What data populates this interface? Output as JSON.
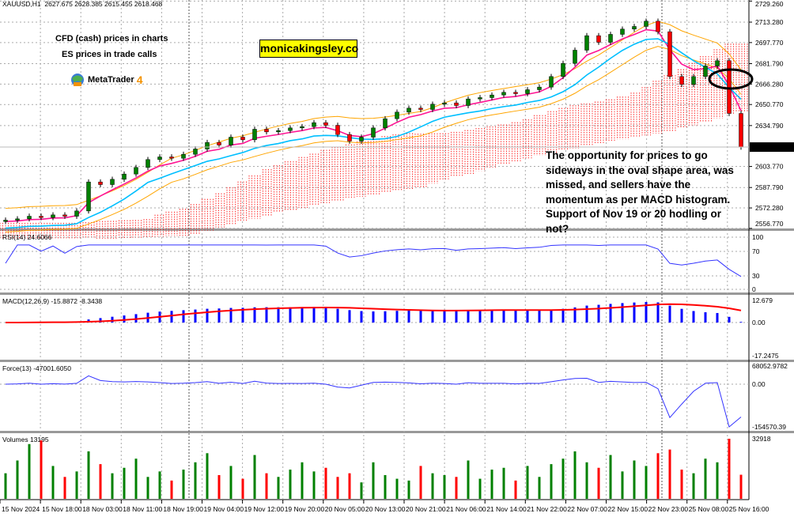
{
  "header": {
    "symbol": "XAUUSD,H1",
    "ohlc": "2627.675 2628.385 2615.455 2618.468"
  },
  "notes": {
    "line1": "CFD (cash) prices in charts",
    "line2": "ES prices in trade calls",
    "brand": "monicakingsley.co",
    "logo_text": "MetaTrader",
    "logo_num": "4",
    "annotation": "The opportunity for prices to go sideways in the oval shape area, was missed, and sellers have the momentum as per MACD histogram. Support of Nov 19 or 20 hodling or not?"
  },
  "colors": {
    "bull": "#008000",
    "bear": "#ff0000",
    "ma_fast": "#ff1493",
    "ma_slow": "#00bfff",
    "envelope": "#ffa500",
    "cloud": "#ff0000",
    "indicator": "#3333ff",
    "macd_hist": "#0000ff",
    "macd_signal": "#ff0000"
  },
  "chart_data": [
    {
      "type": "candlestick",
      "title": "XAUUSD,H1",
      "current_price": "2618.468",
      "y_ticks": [
        "2729.260",
        "2713.280",
        "2697.770",
        "2681.790",
        "2666.280",
        "2650.770",
        "2634.790",
        "2618.468",
        "2603.770",
        "2587.790",
        "2572.280",
        "2556.770"
      ],
      "ylim": [
        2556.77,
        2729.26
      ],
      "x_ticks": [
        "15 Nov 2024",
        "15 Nov 18:00",
        "18 Nov 03:00",
        "18 Nov 11:00",
        "18 Nov 19:00",
        "19 Nov 04:00",
        "19 Nov 12:00",
        "19 Nov 20:00",
        "20 Nov 05:00",
        "20 Nov 13:00",
        "20 Nov 21:00",
        "21 Nov 06:00",
        "21 Nov 14:00",
        "21 Nov 22:00",
        "22 Nov 07:00",
        "22 Nov 15:00",
        "22 Nov 23:00",
        "25 Nov 08:00",
        "25 Nov 16:00"
      ],
      "closes": [
        2563,
        2564,
        2566,
        2565,
        2567,
        2566,
        2570,
        2592,
        2590,
        2594,
        2598,
        2603,
        2609,
        2611,
        2610,
        2613,
        2617,
        2622,
        2620,
        2626,
        2624,
        2632,
        2630,
        2631,
        2633,
        2634,
        2637,
        2635,
        2628,
        2623,
        2626,
        2633,
        2640,
        2645,
        2648,
        2647,
        2651,
        2652,
        2650,
        2655,
        2656,
        2658,
        2660,
        2659,
        2662,
        2664,
        2672,
        2682,
        2692,
        2703,
        2698,
        2704,
        2708,
        2710,
        2714,
        2706,
        2672,
        2666,
        2672,
        2680,
        2684,
        2644,
        2618.468
      ]
    },
    {
      "type": "line",
      "title": "RSI(14) 24.6066",
      "y_ticks": [
        "100",
        "70",
        "30",
        "0"
      ],
      "ylim": [
        0,
        100
      ]
    },
    {
      "type": "bar",
      "title": "MACD(12,26,9) -15.8872 -8.3438",
      "y_ticks": [
        "12.679",
        "0.00",
        "-17.2475"
      ],
      "ylim": [
        -17.2475,
        12.679
      ]
    },
    {
      "type": "line",
      "title": "Force(13) -47001.6050",
      "y_ticks": [
        "68052.9782",
        "0.00",
        "-154570.39"
      ],
      "ylim": [
        -154570.39,
        68052.9782
      ]
    },
    {
      "type": "bar",
      "title": "Volumes 13195",
      "y_ticks": [
        "32918"
      ],
      "ylim": [
        0,
        32918
      ],
      "values": [
        14000,
        21000,
        30000,
        32000,
        18000,
        12000,
        15000,
        26000,
        19000,
        14000,
        17000,
        22000,
        12000,
        15000,
        10000,
        16000,
        20000,
        25000,
        13000,
        18000,
        11000,
        24000,
        14000,
        12000,
        16000,
        20000,
        15000,
        17000,
        12000,
        14000,
        9000,
        20000,
        13000,
        11000,
        10000,
        18000,
        14000,
        13000,
        12000,
        21000,
        11000,
        16000,
        17000,
        10000,
        18000,
        12000,
        19000,
        22000,
        26000,
        20000,
        17000,
        24000,
        15000,
        21000,
        18000,
        25000,
        27000,
        16000,
        14000,
        22000,
        20000,
        32918,
        13195
      ]
    }
  ]
}
